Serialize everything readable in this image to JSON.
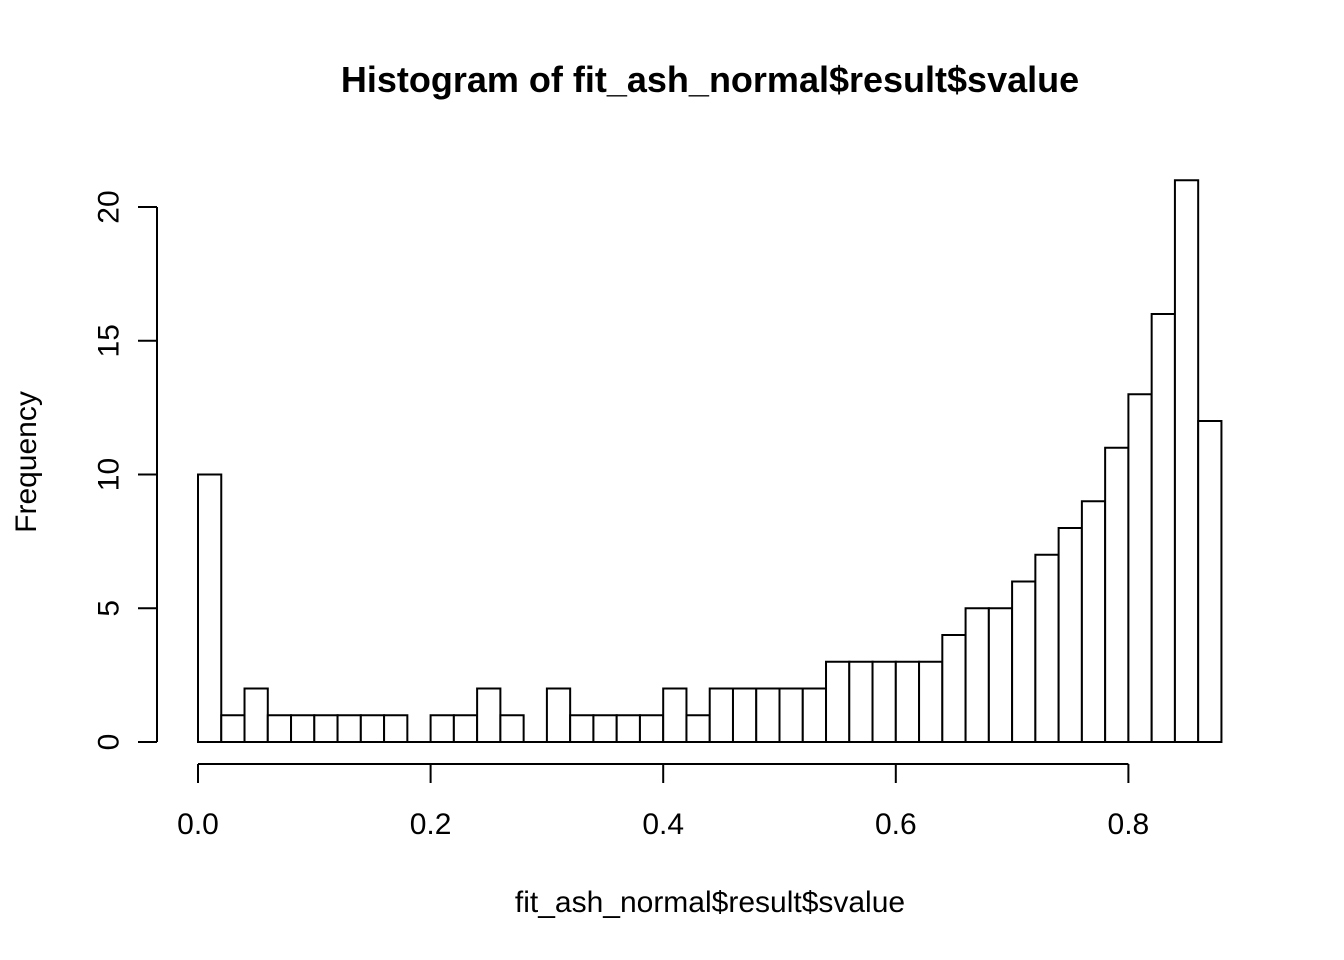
{
  "chart_data": {
    "type": "bar",
    "title": "Histogram of fit_ash_normal$result$svalue",
    "xlabel": "fit_ash_normal$result$svalue",
    "ylabel": "Frequency",
    "bin_width": 0.02,
    "bin_start": 0.0,
    "bin_edges_start": [
      0.0,
      0.02,
      0.04,
      0.06,
      0.08,
      0.1,
      0.12,
      0.14,
      0.16,
      0.18,
      0.2,
      0.22,
      0.24,
      0.26,
      0.28,
      0.3,
      0.32,
      0.34,
      0.36,
      0.38,
      0.4,
      0.42,
      0.44,
      0.46,
      0.48,
      0.5,
      0.52,
      0.54,
      0.56,
      0.58,
      0.6,
      0.62,
      0.64,
      0.66,
      0.68,
      0.7,
      0.72,
      0.74,
      0.76,
      0.78,
      0.8,
      0.82,
      0.84,
      0.86
    ],
    "values": [
      10,
      1,
      2,
      1,
      1,
      1,
      1,
      1,
      1,
      0,
      1,
      1,
      2,
      1,
      0,
      2,
      1,
      1,
      1,
      1,
      2,
      1,
      2,
      2,
      2,
      2,
      2,
      3,
      3,
      3,
      3,
      3,
      4,
      5,
      5,
      6,
      7,
      8,
      9,
      11,
      13,
      16,
      21,
      12
    ],
    "xlim": [
      0.0,
      0.88
    ],
    "ylim": [
      0,
      21
    ],
    "x_ticks": [
      0.0,
      0.2,
      0.4,
      0.6,
      0.8
    ],
    "x_tick_labels": [
      "0.0",
      "0.2",
      "0.4",
      "0.6",
      "0.8"
    ],
    "y_ticks": [
      0,
      5,
      10,
      15,
      20
    ],
    "y_tick_labels": [
      "0",
      "5",
      "10",
      "15",
      "20"
    ],
    "grid": false,
    "colors": {
      "bar_fill": "#ffffff",
      "bar_stroke": "#000000"
    }
  }
}
